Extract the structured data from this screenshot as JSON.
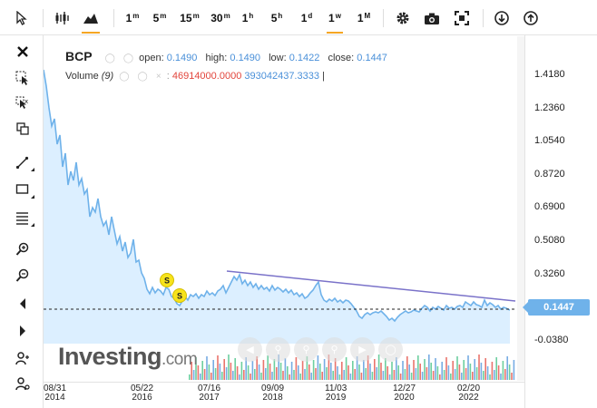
{
  "toolbar": {
    "intervals": [
      {
        "main": "1",
        "sup": "m"
      },
      {
        "main": "5",
        "sup": "m"
      },
      {
        "main": "15",
        "sup": "m"
      },
      {
        "main": "30",
        "sup": "m"
      },
      {
        "main": "1",
        "sup": "h"
      },
      {
        "main": "5",
        "sup": "h"
      },
      {
        "main": "1",
        "sup": "d"
      },
      {
        "main": "1",
        "sup": "w"
      },
      {
        "main": "1",
        "sup": "M"
      }
    ],
    "active_interval": "1w"
  },
  "legend": {
    "symbol": "BCP",
    "open_label": "open:",
    "open": "0.1490",
    "high_label": "high:",
    "high": "0.1490",
    "low_label": "low:",
    "low": "0.1422",
    "close_label": "close:",
    "close": "0.1447",
    "volume_label": "Volume",
    "volume_param": "(9)",
    "volume_value1": "46914000.0000",
    "volume_value2": "393042437.3333",
    "volume_sep": "|"
  },
  "price_axis": [
    "1.4180",
    "1.2360",
    "1.0540",
    "0.8720",
    "0.6900",
    "0.5080",
    "0.3260",
    "-0.0380"
  ],
  "last_price": "0.1447",
  "time_axis": [
    {
      "d": "08/31",
      "y": "2014"
    },
    {
      "d": "05/22",
      "y": "2016"
    },
    {
      "d": "07/16",
      "y": "2017"
    },
    {
      "d": "09/09",
      "y": "2018"
    },
    {
      "d": "11/03",
      "y": "2019"
    },
    {
      "d": "12/27",
      "y": "2020"
    },
    {
      "d": "02/20",
      "y": "2022"
    }
  ],
  "markers": [
    "S",
    "S"
  ],
  "logo": {
    "main": "Investing",
    "suffix": ".com"
  },
  "colors": {
    "line": "#6fb2ea",
    "fill": "#dcefff",
    "trend": "#7a72c9",
    "accent": "#f5a623"
  }
}
